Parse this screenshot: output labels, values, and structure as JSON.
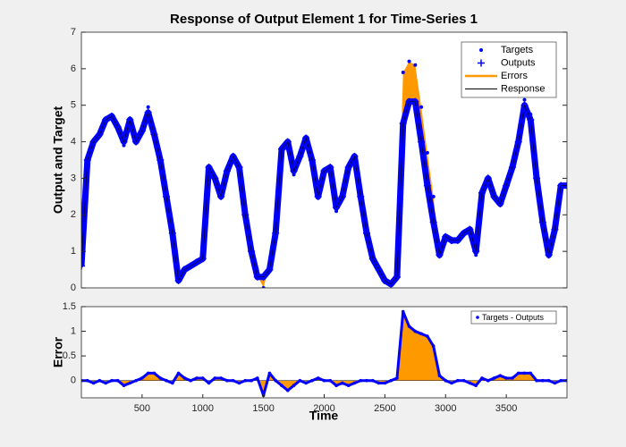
{
  "chart_data": [
    {
      "type": "line",
      "title": "Response of Output Element 1 for Time-Series 1",
      "ylabel": "Output and Target",
      "x": [
        0,
        50,
        100,
        150,
        200,
        250,
        300,
        350,
        400,
        450,
        500,
        550,
        600,
        650,
        700,
        750,
        800,
        850,
        900,
        950,
        1000,
        1050,
        1100,
        1150,
        1200,
        1250,
        1300,
        1350,
        1400,
        1450,
        1500,
        1550,
        1600,
        1650,
        1700,
        1750,
        1800,
        1850,
        1900,
        1950,
        2000,
        2050,
        2100,
        2150,
        2200,
        2250,
        2300,
        2350,
        2400,
        2450,
        2500,
        2550,
        2600,
        2650,
        2700,
        2750,
        2800,
        2850,
        2900,
        2950,
        3000,
        3050,
        3100,
        3150,
        3200,
        3250,
        3300,
        3350,
        3400,
        3450,
        3500,
        3550,
        3600,
        3650,
        3700,
        3750,
        3800,
        3850,
        3900,
        3950,
        4000
      ],
      "series": [
        {
          "name": "Targets",
          "color": "#0000ff",
          "values": [
            0.6,
            3.5,
            3.95,
            4.2,
            4.55,
            4.7,
            4.4,
            3.9,
            4.55,
            4.0,
            4.35,
            4.95,
            4.35,
            3.55,
            2.5,
            1.45,
            0.35,
            0.55,
            0.6,
            0.75,
            0.85,
            3.25,
            3.05,
            2.55,
            3.2,
            3.6,
            3.25,
            2.0,
            1.0,
            0.35,
            0.0,
            0.65,
            1.5,
            3.7,
            3.8,
            3.1,
            3.6,
            4.05,
            3.5,
            2.55,
            3.2,
            3.3,
            2.1,
            2.45,
            3.2,
            3.55,
            2.5,
            1.5,
            0.8,
            0.45,
            0.15,
            0.1,
            0.35,
            5.9,
            6.2,
            6.1,
            4.95,
            3.7,
            2.5,
            1.0,
            1.4,
            1.25,
            1.3,
            1.5,
            1.55,
            0.9,
            2.65,
            3.0,
            2.55,
            2.4,
            2.85,
            3.35,
            4.15,
            5.15,
            4.75,
            3.0,
            1.8,
            0.9,
            1.55,
            2.8,
            2.8
          ]
        },
        {
          "name": "Outputs",
          "color": "#0000ff",
          "values": [
            0.6,
            3.5,
            4.0,
            4.2,
            4.6,
            4.7,
            4.4,
            4.0,
            4.6,
            4.0,
            4.3,
            4.8,
            4.2,
            3.5,
            2.5,
            1.5,
            0.2,
            0.5,
            0.6,
            0.7,
            0.8,
            3.3,
            3.0,
            2.5,
            3.2,
            3.6,
            3.3,
            2.0,
            1.0,
            0.3,
            0.3,
            0.5,
            1.5,
            3.8,
            4.0,
            3.2,
            3.6,
            4.1,
            3.5,
            2.5,
            3.2,
            3.3,
            2.2,
            2.5,
            3.3,
            3.6,
            2.5,
            1.5,
            0.8,
            0.5,
            0.2,
            0.1,
            0.3,
            4.5,
            5.1,
            5.1,
            4.0,
            2.8,
            1.8,
            0.9,
            1.4,
            1.3,
            1.3,
            1.5,
            1.6,
            1.0,
            2.6,
            3.0,
            2.5,
            2.3,
            2.8,
            3.3,
            4.0,
            5.0,
            4.6,
            3.0,
            1.8,
            0.9,
            1.6,
            2.8,
            2.8
          ]
        },
        {
          "name": "Errors",
          "color": "#ff9900"
        },
        {
          "name": "Response",
          "color": "#000000"
        }
      ],
      "xlim": [
        0,
        4000
      ],
      "ylim": [
        0,
        7
      ],
      "yticks": [
        0,
        1,
        2,
        3,
        4,
        5,
        6,
        7
      ]
    },
    {
      "type": "area",
      "xlabel": "Time",
      "ylabel": "Error",
      "x": [
        0,
        50,
        100,
        150,
        200,
        250,
        300,
        350,
        400,
        450,
        500,
        550,
        600,
        650,
        700,
        750,
        800,
        850,
        900,
        950,
        1000,
        1050,
        1100,
        1150,
        1200,
        1250,
        1300,
        1350,
        1400,
        1450,
        1500,
        1550,
        1600,
        1650,
        1700,
        1750,
        1800,
        1850,
        1900,
        1950,
        2000,
        2050,
        2100,
        2150,
        2200,
        2250,
        2300,
        2350,
        2400,
        2450,
        2500,
        2550,
        2600,
        2650,
        2700,
        2750,
        2800,
        2850,
        2900,
        2950,
        3000,
        3050,
        3100,
        3150,
        3200,
        3250,
        3300,
        3350,
        3400,
        3450,
        3500,
        3550,
        3600,
        3650,
        3700,
        3750,
        3800,
        3850,
        3900,
        3950,
        4000
      ],
      "series": [
        {
          "name": "Targets - Outputs",
          "color": "#0000ff",
          "fill": "#ff9900",
          "values": [
            0,
            0,
            -0.05,
            0,
            -0.05,
            0,
            0,
            -0.1,
            -0.05,
            0,
            0.05,
            0.15,
            0.15,
            0.05,
            0,
            -0.05,
            0.15,
            0.05,
            0,
            0.05,
            0.05,
            -0.05,
            0.05,
            0.05,
            0,
            0,
            -0.05,
            0,
            0,
            0.05,
            -0.3,
            0.15,
            0,
            -0.1,
            -0.2,
            -0.1,
            0,
            -0.05,
            0,
            0.05,
            0,
            0,
            -0.1,
            -0.05,
            -0.1,
            -0.05,
            0,
            0,
            0,
            -0.05,
            -0.05,
            0,
            0.05,
            1.4,
            1.1,
            1.0,
            0.95,
            0.9,
            0.7,
            0.1,
            0,
            -0.05,
            0,
            0,
            -0.05,
            -0.1,
            0.05,
            0,
            0.05,
            0.1,
            0.05,
            0.05,
            0.15,
            0.15,
            0.15,
            0,
            0,
            0,
            -0.05,
            0,
            0
          ]
        }
      ],
      "xlim": [
        0,
        4000
      ],
      "xticks": [
        500,
        1000,
        1500,
        2000,
        2500,
        3000,
        3500
      ],
      "ylim": [
        -0.35,
        1.5
      ],
      "yticks": [
        0,
        0.5,
        1,
        1.5
      ]
    }
  ]
}
